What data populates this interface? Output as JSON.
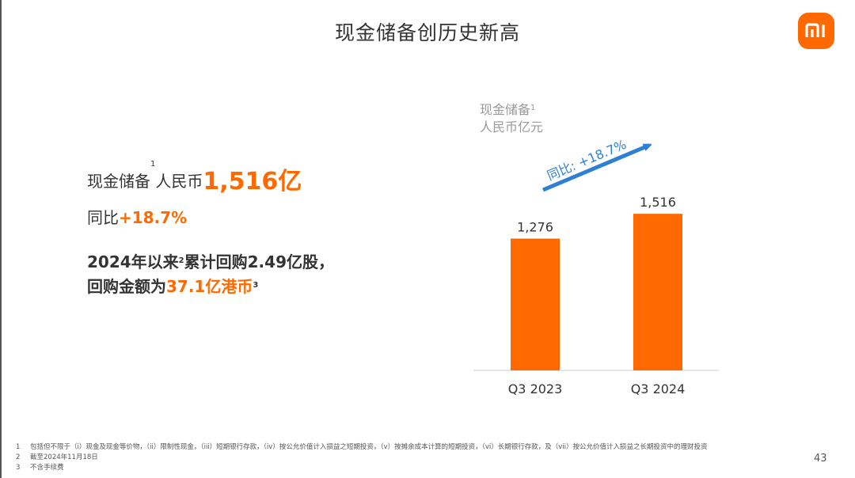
{
  "slide": {
    "title": "现金储备创历史新高",
    "page_number": "43",
    "logo_text": "mi"
  },
  "kpi": {
    "line1_prefix": "现金储备",
    "line1_sup": "1",
    "line1_mid": "人民币",
    "line1_value": "1,516亿",
    "line2_prefix": "同比",
    "line2_value": "+18.7%",
    "line3_text": "2024年以来",
    "line3_sup": "2",
    "line3_rest": "累计回购2.49亿股，",
    "line4_prefix": "回购金额为",
    "line4_value": "37.1亿港币",
    "line4_sup": "3"
  },
  "chart_data": {
    "type": "bar",
    "title": "现金储备",
    "title_sup": "1",
    "unit": "人民币亿元",
    "categories": [
      "Q3 2023",
      "Q3 2024"
    ],
    "values": [
      1276,
      1516
    ],
    "value_labels": [
      "1,276",
      "1,516"
    ],
    "annotation": "同比: +18.7%",
    "ylim": [
      0,
      1600
    ],
    "bar_color": "#ff6900",
    "arrow_color": "#2e7fd6",
    "grid": false,
    "legend": "none"
  },
  "footnotes": [
    {
      "num": "1",
      "text": "包括但不限于（i）现金及现金等价物，（ii）限制性现金，（iii）短期银行存款，（iv）按公允价值计入损益之短期投资，（v）按摊余成本计算的短期投资，（vi）长期银行存款，及（vii）按公允价值计入损益之长期投资中的理财投资"
    },
    {
      "num": "2",
      "text": "截至2024年11月18日"
    },
    {
      "num": "3",
      "text": "不含手续费"
    }
  ],
  "colors": {
    "accent": "#ff6900",
    "text": "#333333",
    "muted": "#9a9a9a"
  }
}
